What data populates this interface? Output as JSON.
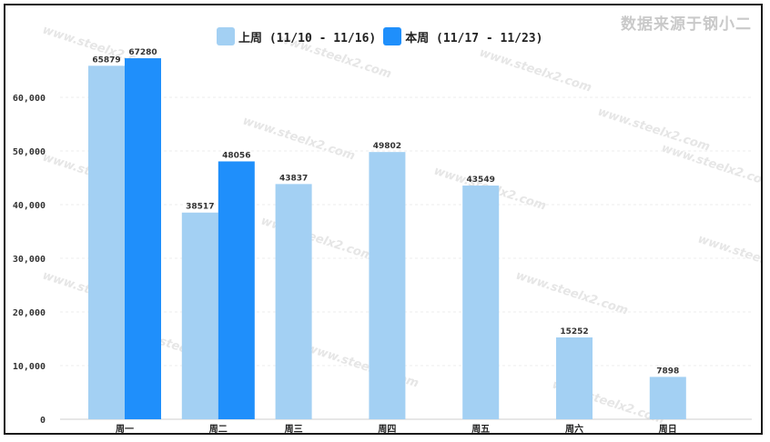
{
  "source_note": "数据来源于钢小二",
  "watermark": "www.steelx2.com",
  "chart_data": {
    "type": "bar",
    "categories": [
      "周一",
      "周二",
      "周三",
      "周四",
      "周五",
      "周六",
      "周日"
    ],
    "series": [
      {
        "name": "上周 (11/10 - 11/16)",
        "color": "#a3d0f3",
        "values": [
          65879,
          38517,
          43837,
          49802,
          43549,
          15252,
          7898
        ]
      },
      {
        "name": "本周 (11/17 - 11/23)",
        "color": "#1f8ffb",
        "values": [
          67280,
          48056,
          null,
          null,
          null,
          null,
          null
        ]
      }
    ],
    "yticks": [
      "0",
      "10,000",
      "20,000",
      "30,000",
      "40,000",
      "50,000",
      "60,000"
    ],
    "ylim": [
      0,
      70000
    ],
    "ylabel": "",
    "grid": true,
    "legend_position": "top-center"
  }
}
